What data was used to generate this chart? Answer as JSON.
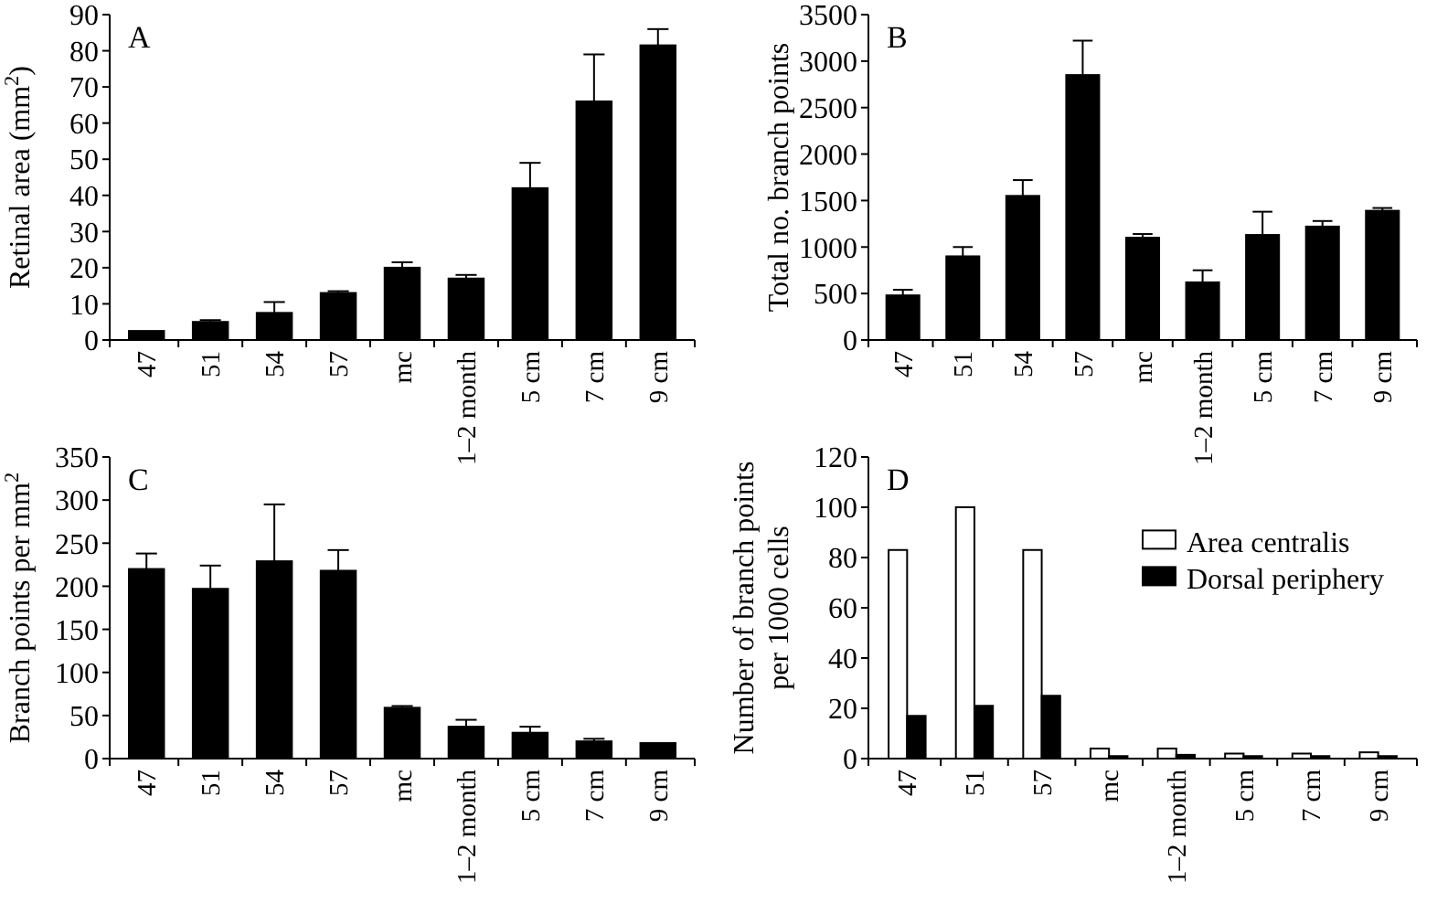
{
  "chart_data": [
    {
      "type": "bar",
      "title": "A",
      "ylabel": "Retinal area (mm$^{2}$)",
      "categories": [
        "47",
        "51",
        "54",
        "57",
        "mc",
        "1–2 month",
        "5 cm",
        "7 cm",
        "9 cm"
      ],
      "series": [
        {
          "color": "#000000",
          "values": [
            2.5,
            5,
            7.5,
            13,
            20,
            17,
            42,
            66,
            81.5
          ],
          "errors": [
            null,
            [
              5,
              5.5
            ],
            [
              7.5,
              10.5
            ],
            [
              13,
              13.5
            ],
            [
              20,
              21.5
            ],
            [
              17,
              18
            ],
            [
              42,
              49
            ],
            [
              66,
              79
            ],
            [
              81.5,
              86
            ]
          ]
        }
      ],
      "ylim": [
        0,
        90
      ],
      "yticks": [
        0,
        10,
        20,
        30,
        40,
        50,
        60,
        70,
        80,
        90
      ],
      "grid": false,
      "legend": false
    },
    {
      "type": "bar",
      "title": "B",
      "ylabel": "Total no. branch points",
      "categories": [
        "47",
        "51",
        "54",
        "57",
        "mc",
        "1–2 month",
        "5 cm",
        "7 cm",
        "9 cm"
      ],
      "series": [
        {
          "color": "#000000",
          "values": [
            480,
            900,
            1550,
            2850,
            1100,
            620,
            1130,
            1220,
            1390
          ],
          "errors": [
            [
              480,
              540
            ],
            [
              900,
              1000
            ],
            [
              1550,
              1720
            ],
            [
              2850,
              3220
            ],
            [
              1100,
              1140
            ],
            [
              620,
              750
            ],
            [
              1130,
              1380
            ],
            [
              1220,
              1280
            ],
            [
              1390,
              1420
            ]
          ]
        }
      ],
      "ylim": [
        0,
        3500
      ],
      "yticks": [
        0,
        500,
        1000,
        1500,
        2000,
        2500,
        3000,
        3500
      ],
      "grid": false,
      "legend": false
    },
    {
      "type": "bar",
      "title": "C",
      "ylabel": "Branch points per mm$^{2}$",
      "categories": [
        "47",
        "51",
        "54",
        "57",
        "mc",
        "1–2 month",
        "5 cm",
        "7 cm",
        "9 cm"
      ],
      "series": [
        {
          "color": "#000000",
          "values": [
            220,
            197,
            229,
            218,
            59,
            37,
            30,
            20,
            18
          ],
          "errors": [
            [
              220,
              238
            ],
            [
              197,
              224
            ],
            [
              229,
              295
            ],
            [
              218,
              242
            ],
            [
              59,
              61
            ],
            [
              37,
              45
            ],
            [
              30,
              37
            ],
            [
              20,
              23
            ],
            null
          ]
        }
      ],
      "ylim": [
        0,
        350
      ],
      "yticks": [
        0,
        50,
        100,
        150,
        200,
        250,
        300,
        350
      ],
      "grid": false,
      "legend": false
    },
    {
      "type": "bar",
      "title": "D",
      "ylabel": "Number of branch points\nper 1000 cells",
      "categories": [
        "47",
        "51",
        "57",
        "mc",
        "1–2 month",
        "5 cm",
        "7 cm",
        "9 cm"
      ],
      "series": [
        {
          "name": "Area centralis",
          "color": "#ffffff",
          "values": [
            83,
            100,
            83,
            4,
            4,
            2,
            2,
            2.5
          ]
        },
        {
          "name": "Dorsal periphery",
          "color": "#000000",
          "values": [
            17,
            21,
            25,
            1,
            1.5,
            1,
            1,
            1
          ]
        }
      ],
      "ylim": [
        0,
        120
      ],
      "yticks": [
        0,
        20,
        40,
        60,
        80,
        100,
        120
      ],
      "grid": false,
      "legend": "right"
    }
  ]
}
